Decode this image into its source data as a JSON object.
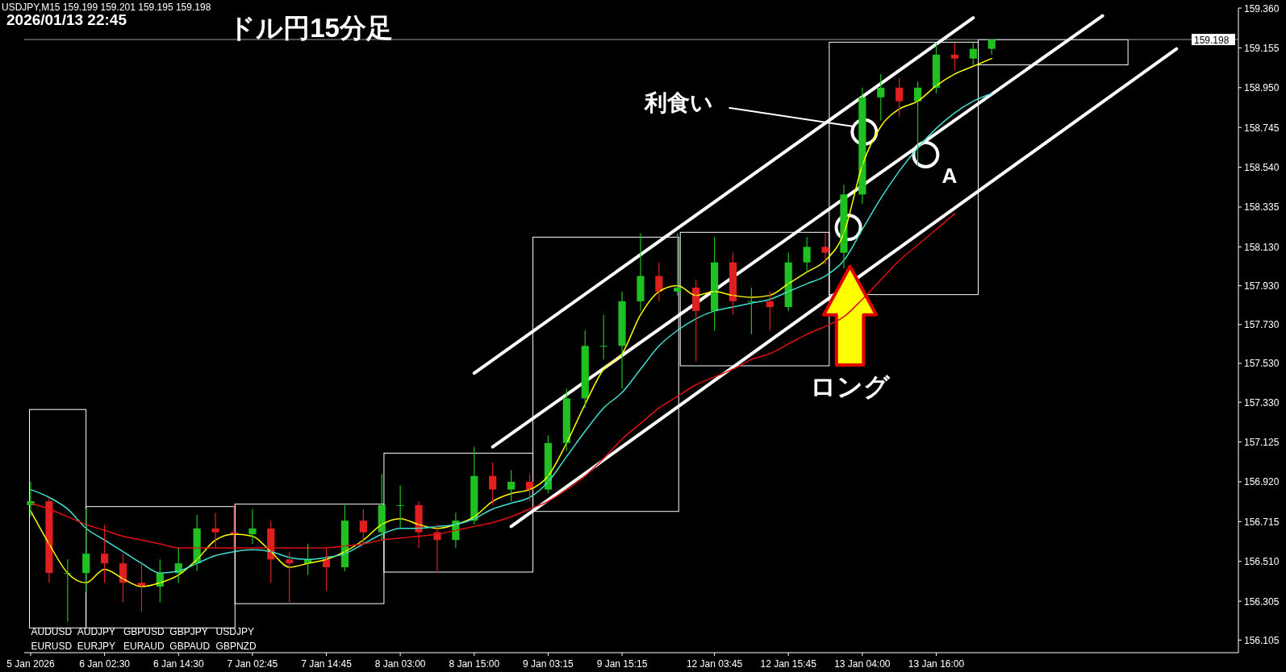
{
  "chart_data": {
    "type": "candlestick",
    "title": "ドル円15分足",
    "subtitle": "2026/01/13 22:45",
    "annotations": [
      "USDJPY,M15  159.199 159.201 159.195 159.198",
      "利食い",
      "A",
      "ロング",
      "AUDUSD",
      "AUDJPY",
      "GBPUSD",
      "GBPJPY",
      "USDJPY",
      "EURUSD",
      "EURJPY",
      "EURAUD",
      "GBPAUD",
      "GBPNZD"
    ],
    "categories": [
      "5 Jan 2026",
      null,
      null,
      null,
      "6 Jan 02:30",
      null,
      null,
      null,
      "6 Jan 14:30",
      null,
      null,
      null,
      "7 Jan 02:45",
      null,
      null,
      null,
      "7 Jan 14:45",
      null,
      null,
      null,
      "8 Jan 03:00",
      null,
      null,
      null,
      "8 Jan 15:00",
      null,
      null,
      null,
      "9 Jan 03:15",
      null,
      null,
      null,
      "9 Jan 15:15",
      null,
      null,
      null,
      null,
      "12 Jan 03:45",
      null,
      null,
      null,
      "12 Jan 15:45",
      null,
      null,
      null,
      "13 Jan 04:00",
      null,
      null,
      null,
      "13 Jan 16:00",
      null,
      null,
      null,
      null,
      null,
      null,
      null,
      null,
      null,
      null,
      null,
      null,
      null,
      null,
      null,
      null
    ],
    "ohlc": [
      [
        156.8,
        156.92,
        156.74,
        156.82
      ],
      [
        156.82,
        156.84,
        156.4,
        156.45
      ],
      [
        156.45,
        156.52,
        156.2,
        156.45
      ],
      [
        156.45,
        156.78,
        156.35,
        156.55
      ],
      [
        156.55,
        156.7,
        156.4,
        156.5
      ],
      [
        156.5,
        156.55,
        156.3,
        156.4
      ],
      [
        156.4,
        156.5,
        156.25,
        156.38
      ],
      [
        156.38,
        156.52,
        156.3,
        156.45
      ],
      [
        156.45,
        156.58,
        156.4,
        156.5
      ],
      [
        156.5,
        156.75,
        156.46,
        156.68
      ],
      [
        156.68,
        156.76,
        156.58,
        156.66
      ],
      [
        156.66,
        156.8,
        156.58,
        156.65
      ],
      [
        156.65,
        156.78,
        156.6,
        156.68
      ],
      [
        156.68,
        156.72,
        156.4,
        156.52
      ],
      [
        156.52,
        156.56,
        156.3,
        156.5
      ],
      [
        156.5,
        156.6,
        156.44,
        156.52
      ],
      [
        156.52,
        156.58,
        156.36,
        156.48
      ],
      [
        156.48,
        156.8,
        156.46,
        156.72
      ],
      [
        156.72,
        156.78,
        156.6,
        156.66
      ],
      [
        156.66,
        156.96,
        156.62,
        156.8
      ],
      [
        156.8,
        156.9,
        156.68,
        156.8
      ],
      [
        156.8,
        156.82,
        156.58,
        156.66
      ],
      [
        156.66,
        156.7,
        156.45,
        156.62
      ],
      [
        156.62,
        156.76,
        156.58,
        156.72
      ],
      [
        156.72,
        157.1,
        156.7,
        156.95
      ],
      [
        156.95,
        157.02,
        156.8,
        156.88
      ],
      [
        156.88,
        156.98,
        156.82,
        156.92
      ],
      [
        156.92,
        156.96,
        156.82,
        156.88
      ],
      [
        156.88,
        157.16,
        156.86,
        157.12
      ],
      [
        157.12,
        157.4,
        157.08,
        157.35
      ],
      [
        157.35,
        157.7,
        157.3,
        157.62
      ],
      [
        157.62,
        157.78,
        157.55,
        157.62
      ],
      [
        157.62,
        157.9,
        157.4,
        157.85
      ],
      [
        157.85,
        158.2,
        157.8,
        157.98
      ],
      [
        157.98,
        158.05,
        157.85,
        157.9
      ],
      [
        157.9,
        158.2,
        157.88,
        157.92
      ],
      [
        157.92,
        157.96,
        157.54,
        157.8
      ],
      [
        157.8,
        158.18,
        157.7,
        158.05
      ],
      [
        158.05,
        158.1,
        157.78,
        157.85
      ],
      [
        157.85,
        157.92,
        157.68,
        157.85
      ],
      [
        157.85,
        157.9,
        157.7,
        157.82
      ],
      [
        157.82,
        158.1,
        157.8,
        158.05
      ],
      [
        158.05,
        158.18,
        158.0,
        158.13
      ],
      [
        158.13,
        158.2,
        158.04,
        158.1
      ],
      [
        158.1,
        158.45,
        158.02,
        158.4
      ],
      [
        158.4,
        158.95,
        158.35,
        158.9
      ],
      [
        158.9,
        159.02,
        158.78,
        158.95
      ],
      [
        158.95,
        159.0,
        158.8,
        158.88
      ],
      [
        158.88,
        158.98,
        158.55,
        158.95
      ],
      [
        158.95,
        159.18,
        158.92,
        159.12
      ],
      [
        159.12,
        159.18,
        159.04,
        159.1
      ],
      [
        159.1,
        159.18,
        159.06,
        159.15
      ],
      [
        159.15,
        159.201,
        159.12,
        159.198
      ],
      null,
      null,
      null,
      null,
      null,
      null,
      null,
      null,
      null,
      null,
      null,
      null,
      null
    ],
    "series": [
      {
        "type": "line",
        "color": "#ffff00",
        "values": [
          156.77,
          156.6,
          156.45,
          156.4,
          156.47,
          156.42,
          156.38,
          156.4,
          156.44,
          156.52,
          156.62,
          156.65,
          156.64,
          156.56,
          156.48,
          156.5,
          156.52,
          156.56,
          156.62,
          156.7,
          156.73,
          156.7,
          156.68,
          156.7,
          156.74,
          156.82,
          156.86,
          156.88,
          156.95,
          157.12,
          157.32,
          157.5,
          157.58,
          157.78,
          157.9,
          157.93,
          157.88,
          157.9,
          157.88,
          157.87,
          157.88,
          157.94,
          158.0,
          158.06,
          158.2,
          158.55,
          158.75,
          158.84,
          158.88,
          158.96,
          159.02,
          159.06,
          159.1,
          null,
          null,
          null,
          null,
          null,
          null,
          null,
          null,
          null,
          null,
          null,
          null,
          null
        ]
      },
      {
        "type": "line",
        "color": "#40e0d0",
        "values": [
          156.88,
          156.84,
          156.78,
          156.68,
          156.62,
          156.56,
          156.5,
          156.45,
          156.46,
          156.5,
          156.54,
          156.56,
          156.57,
          156.56,
          156.53,
          156.52,
          156.53,
          156.55,
          156.6,
          156.65,
          156.68,
          156.68,
          156.69,
          156.7,
          156.73,
          156.78,
          156.81,
          156.84,
          156.92,
          157.05,
          157.18,
          157.3,
          157.38,
          157.5,
          157.62,
          157.7,
          157.76,
          157.8,
          157.82,
          157.84,
          157.86,
          157.9,
          157.94,
          157.98,
          158.06,
          158.22,
          158.38,
          158.52,
          158.64,
          158.74,
          158.82,
          158.88,
          158.92,
          null,
          null,
          null,
          null,
          null,
          null,
          null,
          null,
          null,
          null,
          null,
          null,
          null
        ]
      },
      {
        "type": "line",
        "color": "#e01010",
        "values": [
          156.81,
          156.78,
          156.74,
          156.7,
          156.67,
          156.64,
          156.62,
          156.6,
          156.58,
          156.58,
          156.58,
          156.58,
          156.58,
          156.58,
          156.58,
          156.58,
          156.58,
          156.59,
          156.6,
          156.62,
          156.63,
          156.64,
          156.65,
          156.67,
          156.69,
          156.71,
          156.74,
          156.78,
          156.82,
          156.88,
          156.95,
          157.04,
          157.14,
          157.22,
          157.3,
          157.36,
          157.42,
          157.46,
          157.5,
          157.55,
          157.58,
          157.63,
          157.68,
          157.72,
          157.77,
          157.86,
          157.96,
          158.06,
          158.14,
          158.22,
          158.3,
          null,
          null,
          null,
          null,
          null,
          null,
          null,
          null,
          null,
          null,
          null,
          null,
          null,
          null,
          null
        ]
      },
      {
        "type": "line",
        "color": "#ffffff",
        "values": [
          null,
          null,
          null,
          null,
          null,
          null,
          null,
          null,
          null,
          null,
          null,
          null,
          null,
          null,
          null,
          null,
          null,
          null,
          null,
          null,
          null,
          null,
          null,
          null,
          157.48,
          null,
          null,
          null,
          null,
          null,
          null,
          null,
          null,
          null,
          null,
          null,
          null,
          null,
          null,
          null,
          null,
          null,
          null,
          null,
          null,
          null,
          null,
          null,
          null,
          null,
          null,
          159.31,
          null,
          null,
          null,
          null,
          null,
          null,
          null,
          null,
          null,
          null,
          null,
          null,
          null,
          null
        ]
      },
      {
        "type": "line",
        "color": "#ffffff",
        "values": [
          null,
          null,
          null,
          null,
          null,
          null,
          null,
          null,
          null,
          null,
          null,
          null,
          null,
          null,
          null,
          null,
          null,
          null,
          null,
          null,
          null,
          null,
          null,
          null,
          null,
          157.1,
          null,
          null,
          null,
          null,
          null,
          null,
          null,
          null,
          null,
          null,
          null,
          null,
          null,
          null,
          null,
          null,
          null,
          null,
          null,
          null,
          null,
          null,
          null,
          null,
          null,
          null,
          null,
          null,
          null,
          null,
          null,
          null,
          159.32,
          null,
          null,
          null,
          null,
          null,
          null,
          null
        ]
      },
      {
        "type": "line",
        "color": "#ffffff",
        "values": [
          null,
          null,
          null,
          null,
          null,
          null,
          null,
          null,
          null,
          null,
          null,
          null,
          null,
          null,
          null,
          null,
          null,
          null,
          null,
          null,
          null,
          null,
          null,
          null,
          null,
          null,
          156.69,
          null,
          null,
          null,
          null,
          null,
          null,
          null,
          null,
          null,
          null,
          null,
          null,
          null,
          null,
          null,
          null,
          null,
          null,
          null,
          null,
          null,
          null,
          null,
          null,
          null,
          null,
          null,
          null,
          null,
          null,
          null,
          null,
          null,
          null,
          null,
          159.15,
          null,
          null,
          null
        ]
      }
    ],
    "ylim": [
      156.04,
      159.36
    ],
    "yticks": [
      156.105,
      156.305,
      {
        "value": 156.51,
        "label": "156.510"
      },
      156.715,
      {
        "value": 156.92,
        "label": "156.920"
      },
      157.125,
      {
        "value": 157.33,
        "label": "157.330"
      },
      {
        "value": 157.53,
        "label": "157.530"
      },
      {
        "value": 157.73,
        "label": "157.730"
      },
      {
        "value": 157.93,
        "label": "157.930"
      },
      {
        "value": 158.13,
        "label": "158.130"
      },
      158.335,
      {
        "value": 158.54,
        "label": "158.540"
      },
      158.745,
      {
        "value": 158.95,
        "label": "158.950"
      },
      159.155,
      {
        "value": 159.36,
        "label": "159.360"
      }
    ],
    "ref_lines": [
      {
        "axis": "y",
        "value": 159.198,
        "label": "159.198",
        "color": "#a0a0a0"
      }
    ]
  }
}
